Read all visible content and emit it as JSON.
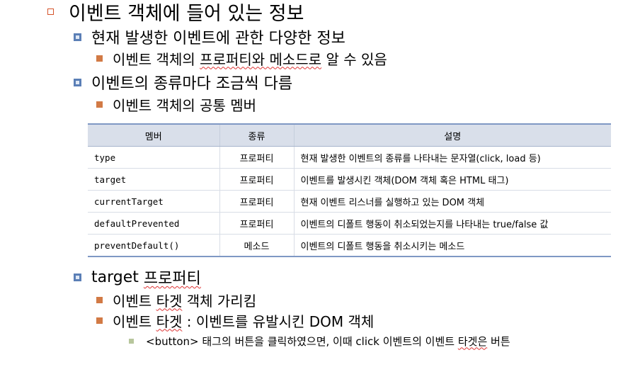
{
  "slide": {
    "heading": "이벤트 객체에 들어 있는 정보",
    "sub1": "현재 발생한 이벤트에 관한 다양한 정보",
    "sub1_item_pre": "이벤트 객체의 ",
    "sub1_item_link": "프로퍼티와 메소드로",
    "sub1_item_post": " 알 수 있음",
    "sub2": "이벤트의 종류마다 조금씩 다름",
    "sub2_item": "이벤트 객체의 공통 멤버",
    "sub3_pre": "target ",
    "sub3_link": "프로퍼티",
    "sub3_item1_pre": "이벤트 ",
    "sub3_item1_link": "타겟",
    "sub3_item1_post": " 객체 가리킴",
    "sub3_item2_pre": "이벤트 ",
    "sub3_item2_link": "타겟",
    "sub3_item2_post": " : 이벤트를 유발시킨 DOM 객체",
    "sub3_note_pre": "<button> 태그의 버튼을 클릭하였으면, 이때 click 이벤트의 이벤트 ",
    "sub3_note_link": "타겟은",
    "sub3_note_post": " 버튼"
  },
  "table": {
    "headers": [
      "멤버",
      "종류",
      "설명"
    ],
    "rows": [
      {
        "member": "type",
        "kind": "프로퍼티",
        "desc": "현재 발생한 이벤트의 종류를 나타내는 문자열(click, load 등)"
      },
      {
        "member": "target",
        "kind": "프로퍼티",
        "desc": "이벤트를 발생시킨 객체(DOM 객체 혹은 HTML 태그)"
      },
      {
        "member": "currentTarget",
        "kind": "프로퍼티",
        "desc": "현재 이벤트 리스너를 실행하고 있는 DOM 객체"
      },
      {
        "member": "defaultPrevented",
        "kind": "프로퍼티",
        "desc": "이벤트의 디폴트 행동이 취소되었는지를 나타내는 true/false 값"
      },
      {
        "member": "preventDefault()",
        "kind": "메소드",
        "desc": "이벤트의 디폴트 행동을 취소시키는 메소드"
      }
    ]
  },
  "colors": {
    "level1_bullet": "#d5532a",
    "level2_bullet": "#5b7fb6",
    "level3_bullet": "#d27a45",
    "level4_bullet": "#b7c69c",
    "table_header_bg": "#d9dfea",
    "table_rule": "#7f98c4"
  }
}
